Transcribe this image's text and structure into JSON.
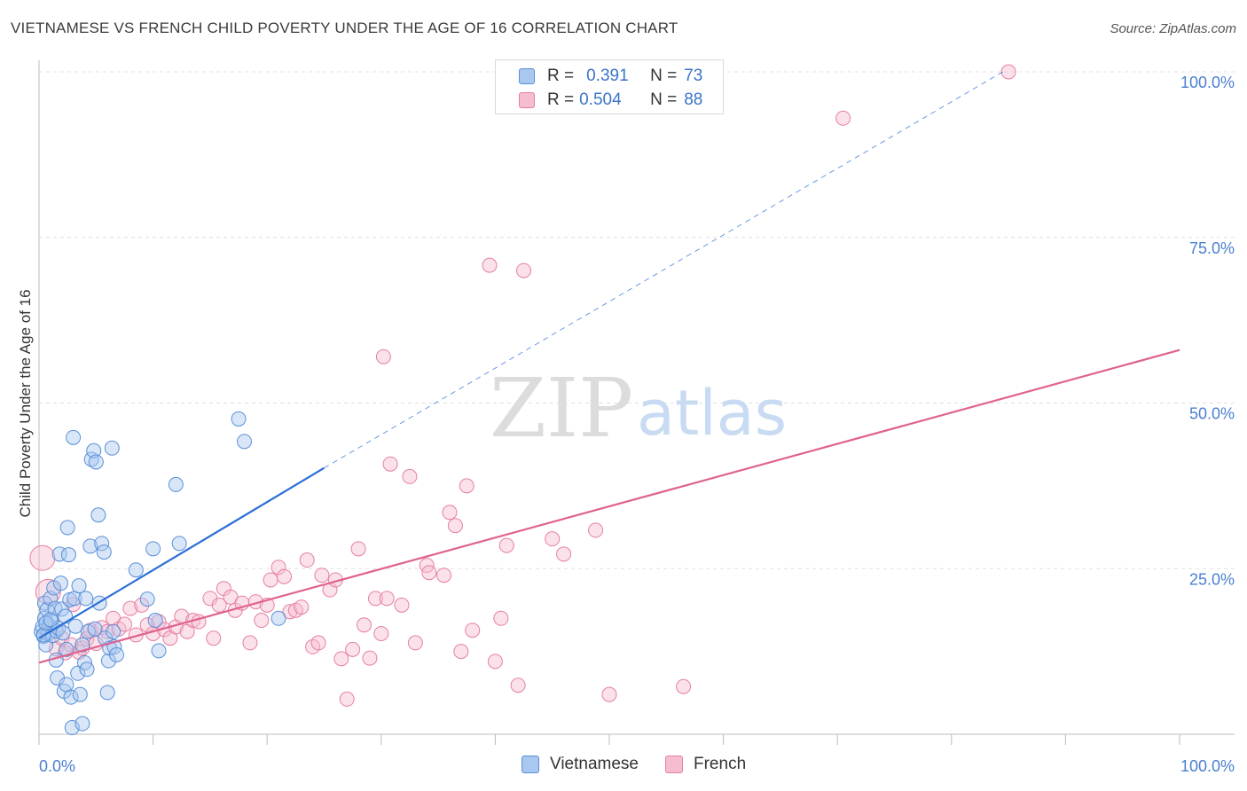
{
  "header": {
    "title": "VIETNAMESE VS FRENCH CHILD POVERTY UNDER THE AGE OF 16 CORRELATION CHART",
    "source": "Source: ZipAtlas.com"
  },
  "watermark": {
    "zip": "ZIP",
    "atlas": "atlas"
  },
  "legend": {
    "rows": [
      {
        "r_label": "R =",
        "r_value": "0.391",
        "n_label": "N =",
        "n_value": "73"
      },
      {
        "r_label": "R =",
        "r_value": "0.504",
        "n_label": "N =",
        "n_value": "88"
      }
    ]
  },
  "bottom_legend": {
    "items": [
      {
        "label": "Vietnamese"
      },
      {
        "label": "French"
      }
    ]
  },
  "colors": {
    "vietnamese_fill": "#a9c8f0",
    "vietnamese_stroke": "#5a8fd8",
    "vietnamese_line": "#2b6fd6",
    "french_fill": "#f6bcd0",
    "french_stroke": "#e67fa3",
    "french_line": "#e0628f",
    "tick_text": "#4a7fd0",
    "grid": "#e0e0e0"
  },
  "chart_data": {
    "type": "scatter",
    "title": "VIETNAMESE VS FRENCH CHILD POVERTY UNDER THE AGE OF 16 CORRELATION CHART",
    "xlabel": "",
    "ylabel": "Child Poverty Under the Age of 16",
    "xlim": [
      0,
      100
    ],
    "ylim": [
      0,
      100
    ],
    "x_tick_labels": [
      "0.0%",
      "100.0%"
    ],
    "y_ticks": [
      25,
      50,
      75,
      100
    ],
    "y_tick_labels": [
      "25.0%",
      "50.0%",
      "75.0%",
      "100.0%"
    ],
    "grid": true,
    "series": [
      {
        "name": "Vietnamese",
        "R": 0.391,
        "N": 73,
        "trend": {
          "x": [
            0,
            25
          ],
          "y": [
            14.5,
            40.2
          ]
        },
        "trend_extension": {
          "x": [
            25,
            84.5
          ],
          "y": [
            40.2,
            100
          ]
        },
        "points": [
          [
            0.2,
            15.5
          ],
          [
            0.3,
            16.2
          ],
          [
            0.4,
            14.8
          ],
          [
            0.5,
            19.8
          ],
          [
            0.5,
            17.5
          ],
          [
            0.6,
            13.5
          ],
          [
            0.7,
            18.8
          ],
          [
            0.8,
            15.2
          ],
          [
            0.9,
            16.4
          ],
          [
            1.0,
            20.5
          ],
          [
            1.1,
            17.1
          ],
          [
            1.2,
            14.9
          ],
          [
            1.3,
            22.1
          ],
          [
            1.4,
            19.0
          ],
          [
            1.5,
            15.6
          ],
          [
            1.5,
            11.2
          ],
          [
            1.6,
            8.5
          ],
          [
            1.7,
            16.0
          ],
          [
            1.8,
            27.2
          ],
          [
            1.9,
            22.8
          ],
          [
            2.0,
            18.9
          ],
          [
            2.1,
            15.3
          ],
          [
            2.2,
            6.5
          ],
          [
            2.3,
            17.8
          ],
          [
            2.4,
            7.5
          ],
          [
            2.4,
            12.8
          ],
          [
            2.5,
            31.2
          ],
          [
            2.6,
            27.1
          ],
          [
            2.7,
            20.3
          ],
          [
            2.8,
            5.6
          ],
          [
            2.9,
            1.0
          ],
          [
            3.0,
            44.8
          ],
          [
            3.1,
            20.5
          ],
          [
            3.2,
            16.3
          ],
          [
            3.4,
            9.2
          ],
          [
            3.5,
            22.4
          ],
          [
            3.6,
            6.0
          ],
          [
            3.8,
            13.5
          ],
          [
            3.8,
            1.6
          ],
          [
            4.0,
            10.8
          ],
          [
            4.1,
            20.5
          ],
          [
            4.2,
            9.8
          ],
          [
            4.3,
            15.5
          ],
          [
            4.5,
            28.4
          ],
          [
            4.6,
            41.5
          ],
          [
            4.8,
            42.8
          ],
          [
            4.9,
            15.9
          ],
          [
            5.0,
            41.1
          ],
          [
            5.2,
            33.1
          ],
          [
            5.3,
            19.8
          ],
          [
            5.5,
            28.8
          ],
          [
            5.7,
            27.5
          ],
          [
            5.8,
            14.5
          ],
          [
            6.0,
            6.3
          ],
          [
            6.1,
            11.1
          ],
          [
            6.2,
            13.0
          ],
          [
            6.4,
            43.2
          ],
          [
            6.5,
            15.5
          ],
          [
            6.6,
            13.2
          ],
          [
            6.8,
            12.0
          ],
          [
            8.5,
            24.8
          ],
          [
            9.5,
            20.4
          ],
          [
            10.0,
            28.0
          ],
          [
            10.2,
            17.2
          ],
          [
            10.5,
            12.6
          ],
          [
            12.0,
            37.7
          ],
          [
            12.3,
            28.8
          ],
          [
            17.5,
            47.6
          ],
          [
            18.0,
            44.2
          ],
          [
            21.0,
            17.5
          ],
          [
            0.4,
            15.0
          ],
          [
            0.6,
            16.8
          ],
          [
            1.0,
            17.3
          ]
        ]
      },
      {
        "name": "French",
        "R": 0.504,
        "N": 88,
        "trend": {
          "x": [
            0,
            100
          ],
          "y": [
            10.8,
            58.0
          ]
        },
        "points": [
          [
            0.3,
            26.6
          ],
          [
            0.8,
            21.5
          ],
          [
            1.5,
            12.9
          ],
          [
            2.0,
            14.5
          ],
          [
            2.3,
            12.3
          ],
          [
            2.8,
            13.5
          ],
          [
            3.0,
            19.6
          ],
          [
            3.5,
            12.4
          ],
          [
            3.8,
            13.0
          ],
          [
            4.2,
            14.4
          ],
          [
            4.5,
            15.7
          ],
          [
            5.0,
            13.7
          ],
          [
            5.5,
            16.1
          ],
          [
            6.0,
            15.5
          ],
          [
            6.5,
            17.5
          ],
          [
            7.0,
            15.9
          ],
          [
            7.5,
            16.6
          ],
          [
            8.0,
            19.0
          ],
          [
            8.5,
            15.0
          ],
          [
            9.0,
            19.5
          ],
          [
            9.5,
            16.5
          ],
          [
            10.0,
            15.2
          ],
          [
            10.5,
            17.0
          ],
          [
            11.0,
            15.8
          ],
          [
            11.5,
            14.5
          ],
          [
            12.0,
            16.2
          ],
          [
            12.5,
            17.8
          ],
          [
            13.0,
            15.5
          ],
          [
            13.5,
            17.2
          ],
          [
            14.0,
            17.0
          ],
          [
            15.0,
            20.5
          ],
          [
            15.3,
            14.5
          ],
          [
            15.8,
            19.5
          ],
          [
            16.2,
            22.0
          ],
          [
            16.8,
            20.7
          ],
          [
            17.2,
            18.7
          ],
          [
            17.8,
            19.8
          ],
          [
            18.5,
            13.8
          ],
          [
            19.0,
            20.0
          ],
          [
            19.5,
            17.2
          ],
          [
            20.0,
            19.5
          ],
          [
            20.3,
            23.3
          ],
          [
            21.0,
            25.2
          ],
          [
            21.5,
            23.8
          ],
          [
            22.0,
            18.5
          ],
          [
            22.5,
            18.7
          ],
          [
            23.0,
            19.2
          ],
          [
            23.5,
            26.3
          ],
          [
            24.0,
            13.2
          ],
          [
            24.5,
            13.8
          ],
          [
            24.8,
            24.0
          ],
          [
            25.5,
            21.8
          ],
          [
            26.0,
            23.3
          ],
          [
            26.5,
            11.4
          ],
          [
            27.0,
            5.3
          ],
          [
            27.5,
            12.8
          ],
          [
            28.0,
            28.0
          ],
          [
            28.5,
            16.5
          ],
          [
            29.0,
            11.5
          ],
          [
            29.5,
            20.5
          ],
          [
            30.0,
            15.2
          ],
          [
            30.5,
            20.5
          ],
          [
            30.2,
            57.0
          ],
          [
            30.8,
            40.8
          ],
          [
            31.8,
            19.5
          ],
          [
            32.5,
            38.9
          ],
          [
            33.0,
            13.8
          ],
          [
            34.0,
            25.5
          ],
          [
            34.2,
            24.4
          ],
          [
            35.5,
            24.0
          ],
          [
            36.0,
            33.5
          ],
          [
            36.5,
            31.5
          ],
          [
            37.0,
            12.5
          ],
          [
            37.5,
            37.5
          ],
          [
            38.0,
            15.7
          ],
          [
            39.5,
            70.8
          ],
          [
            40.0,
            11.0
          ],
          [
            40.5,
            17.5
          ],
          [
            41.0,
            28.5
          ],
          [
            42.0,
            7.4
          ],
          [
            42.5,
            70.0
          ],
          [
            45.0,
            29.5
          ],
          [
            46.0,
            27.2
          ],
          [
            48.8,
            30.8
          ],
          [
            50.0,
            6.0
          ],
          [
            56.5,
            7.2
          ],
          [
            70.5,
            93.0
          ],
          [
            85.0,
            100.0
          ]
        ]
      }
    ]
  }
}
